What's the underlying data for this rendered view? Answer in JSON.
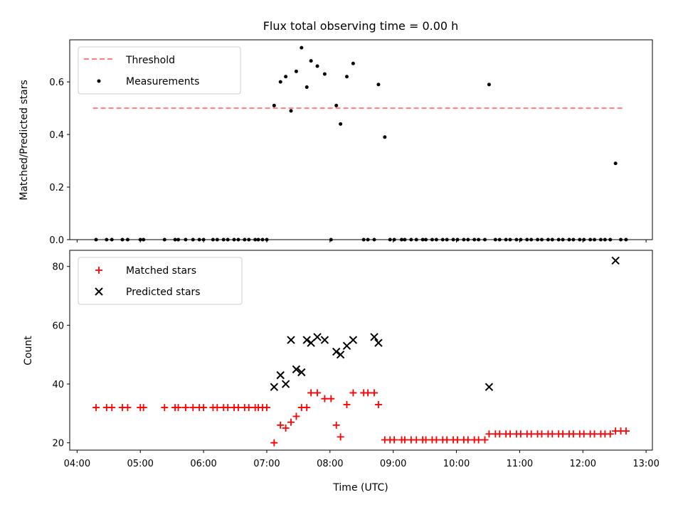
{
  "chart_data": [
    {
      "type": "scatter",
      "panel": "top",
      "title": "Flux total observing time = 0.00 h",
      "ylabel": "Matched/Predicted stars",
      "xlabel": "",
      "ylim": [
        0,
        0.76
      ],
      "yticks": [
        0.0,
        0.2,
        0.4,
        0.6
      ],
      "ytick_labels": [
        "0.0",
        "0.2",
        "0.4",
        "0.6"
      ],
      "legend": {
        "placement": "top-left",
        "entries": [
          "Threshold",
          "Measurements"
        ]
      },
      "colors": {
        "threshold": "#ff7f7f",
        "measurements": "#000000"
      },
      "series": [
        {
          "name": "Threshold",
          "kind": "dashed-line",
          "x": [
            "04:15",
            "12:40"
          ],
          "y": [
            0.5,
            0.5
          ]
        },
        {
          "name": "Measurements",
          "kind": "points",
          "x": [
            "04:18",
            "04:28",
            "04:33",
            "04:43",
            "04:48",
            "05:00",
            "05:03",
            "05:23",
            "05:33",
            "05:36",
            "05:43",
            "05:50",
            "05:56",
            "06:00",
            "06:09",
            "06:13",
            "06:19",
            "06:23",
            "06:29",
            "06:33",
            "06:39",
            "06:43",
            "06:49",
            "06:52",
            "06:56",
            "07:00",
            "07:07",
            "07:13",
            "07:18",
            "07:23",
            "07:28",
            "07:33",
            "07:38",
            "07:42",
            "07:48",
            "07:55",
            "08:01",
            "08:06",
            "08:10",
            "08:16",
            "08:22",
            "08:32",
            "08:36",
            "08:42",
            "08:46",
            "08:52",
            "08:57",
            "09:01",
            "09:08",
            "09:11",
            "09:17",
            "09:22",
            "09:28",
            "09:31",
            "09:37",
            "09:41",
            "09:47",
            "09:51",
            "09:57",
            "10:01",
            "10:07",
            "10:11",
            "10:17",
            "10:21",
            "10:27",
            "10:31",
            "10:37",
            "10:41",
            "10:47",
            "10:51",
            "10:57",
            "11:01",
            "11:07",
            "11:11",
            "11:17",
            "11:21",
            "11:27",
            "11:31",
            "11:37",
            "11:41",
            "11:47",
            "11:51",
            "11:57",
            "12:01",
            "12:07",
            "12:11",
            "12:17",
            "12:21",
            "12:26",
            "12:31",
            "12:36",
            "12:41"
          ],
          "y": [
            0,
            0,
            0,
            0,
            0,
            0,
            0,
            0,
            0,
            0,
            0,
            0,
            0,
            0,
            0,
            0,
            0,
            0,
            0,
            0,
            0,
            0,
            0,
            0,
            0,
            0,
            0.51,
            0.6,
            0.62,
            0.49,
            0.64,
            0.73,
            0.58,
            0.68,
            0.66,
            0.63,
            0,
            0.51,
            0.44,
            0.62,
            0.67,
            0,
            0,
            0,
            0.59,
            0.39,
            0,
            0,
            0,
            0,
            0,
            0,
            0,
            0,
            0,
            0,
            0,
            0,
            0,
            0,
            0,
            0,
            0,
            0,
            0,
            0.59,
            0,
            0,
            0,
            0,
            0,
            0,
            0,
            0,
            0,
            0,
            0,
            0,
            0,
            0,
            0,
            0,
            0,
            0,
            0,
            0,
            0,
            0,
            0,
            0.29,
            0,
            0
          ]
        }
      ]
    },
    {
      "type": "scatter",
      "panel": "bottom",
      "title": "",
      "xlabel": "Time (UTC)",
      "ylabel": "Count",
      "ylim": [
        17.5,
        85.5
      ],
      "yticks": [
        20,
        40,
        60,
        80
      ],
      "ytick_labels": [
        "20",
        "40",
        "60",
        "80"
      ],
      "xlim": [
        "03:53",
        "13:06"
      ],
      "xticks": [
        "04:00",
        "05:00",
        "06:00",
        "07:00",
        "08:00",
        "09:00",
        "10:00",
        "11:00",
        "12:00",
        "13:00"
      ],
      "legend": {
        "placement": "top-left",
        "entries": [
          "Matched stars",
          "Predicted stars"
        ]
      },
      "colors": {
        "matched": "#ff0000",
        "predicted": "#000000"
      },
      "series": [
        {
          "name": "Matched stars",
          "marker": "+",
          "x": [
            "04:18",
            "04:28",
            "04:33",
            "04:43",
            "04:48",
            "05:00",
            "05:03",
            "05:23",
            "05:33",
            "05:36",
            "05:43",
            "05:50",
            "05:56",
            "06:00",
            "06:09",
            "06:13",
            "06:19",
            "06:23",
            "06:29",
            "06:33",
            "06:39",
            "06:43",
            "06:49",
            "06:52",
            "06:56",
            "07:00",
            "07:07",
            "07:13",
            "07:18",
            "07:23",
            "07:28",
            "07:33",
            "07:38",
            "07:42",
            "07:48",
            "07:55",
            "08:01",
            "08:06",
            "08:10",
            "08:16",
            "08:22",
            "08:32",
            "08:36",
            "08:42",
            "08:46",
            "08:52",
            "08:57",
            "09:01",
            "09:08",
            "09:11",
            "09:17",
            "09:22",
            "09:28",
            "09:31",
            "09:37",
            "09:41",
            "09:47",
            "09:51",
            "09:57",
            "10:01",
            "10:07",
            "10:11",
            "10:17",
            "10:21",
            "10:27",
            "10:31",
            "10:37",
            "10:41",
            "10:47",
            "10:51",
            "10:57",
            "11:01",
            "11:07",
            "11:11",
            "11:17",
            "11:21",
            "11:27",
            "11:31",
            "11:37",
            "11:41",
            "11:47",
            "11:51",
            "11:57",
            "12:01",
            "12:07",
            "12:11",
            "12:17",
            "12:21",
            "12:26",
            "12:31",
            "12:36",
            "12:41"
          ],
          "y": [
            32,
            32,
            32,
            32,
            32,
            32,
            32,
            32,
            32,
            32,
            32,
            32,
            32,
            32,
            32,
            32,
            32,
            32,
            32,
            32,
            32,
            32,
            32,
            32,
            32,
            32,
            20,
            26,
            25,
            27,
            29,
            32,
            32,
            37,
            37,
            35,
            35,
            26,
            22,
            33,
            37,
            37,
            37,
            37,
            33,
            21,
            21,
            21,
            21,
            21,
            21,
            21,
            21,
            21,
            21,
            21,
            21,
            21,
            21,
            21,
            21,
            21,
            21,
            21,
            21,
            23,
            23,
            23,
            23,
            23,
            23,
            23,
            23,
            23,
            23,
            23,
            23,
            23,
            23,
            23,
            23,
            23,
            23,
            23,
            23,
            23,
            23,
            23,
            23,
            24,
            24,
            24
          ]
        },
        {
          "name": "Predicted stars",
          "marker": "x",
          "x": [
            "07:07",
            "07:13",
            "07:18",
            "07:23",
            "07:28",
            "07:33",
            "07:38",
            "07:42",
            "07:48",
            "07:55",
            "08:06",
            "08:10",
            "08:16",
            "08:22",
            "08:42",
            "08:46",
            "10:31",
            "12:31"
          ],
          "y": [
            39,
            43,
            40,
            55,
            45,
            44,
            55,
            54,
            56,
            55,
            51,
            50,
            53,
            55,
            56,
            54,
            39,
            82
          ]
        }
      ]
    }
  ]
}
